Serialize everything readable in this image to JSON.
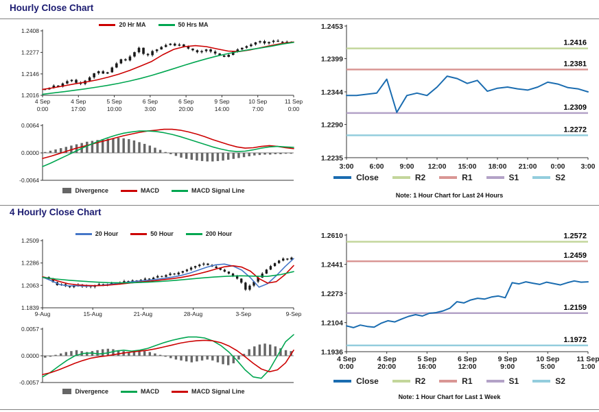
{
  "sections": {
    "hourly": {
      "title": "Hourly Close Chart"
    },
    "four_hourly": {
      "title": "4 Hourly Close Chart"
    }
  },
  "colors": {
    "candle": "#1a1a1a",
    "ma_red": "#cc0000",
    "ma_green": "#00a650",
    "ma_blue": "#4576c8",
    "close_blue": "#1a6cb0",
    "r2": "#c3d69b",
    "r1": "#d99694",
    "s1": "#b3a2c7",
    "s2": "#93cddd",
    "divergence": "#666666",
    "title_navy": "#1a1a70"
  },
  "chart_data": {
    "hourly_price": {
      "type": "candlestick",
      "ylim": [
        1.2016,
        1.2408
      ],
      "yticks": [
        1.2408,
        1.2277,
        1.2146,
        1.2016
      ],
      "xlabels": [
        [
          "4 Sep",
          "0:00"
        ],
        [
          "4 Sep",
          "17:00"
        ],
        [
          "5 Sep",
          "10:00"
        ],
        [
          "6 Sep",
          "3:00"
        ],
        [
          "6 Sep",
          "20:00"
        ],
        [
          "9 Sep",
          "14:00"
        ],
        [
          "10 Sep",
          "7:00"
        ],
        [
          "11 Sep",
          "0:00"
        ]
      ],
      "wick": 0.001,
      "close": [
        1.2052,
        1.206,
        1.2075,
        1.2068,
        1.2088,
        1.2102,
        1.211,
        1.2092,
        1.2085,
        1.2105,
        1.2125,
        1.215,
        1.2162,
        1.2148,
        1.2156,
        1.2185,
        1.221,
        1.2235,
        1.2228,
        1.2252,
        1.2278,
        1.2305,
        1.2268,
        1.226,
        1.2285,
        1.2295,
        1.231,
        1.2322,
        1.233,
        1.2318,
        1.2325,
        1.2312,
        1.23,
        1.229,
        1.2278,
        1.2285,
        1.2295,
        1.2282,
        1.227,
        1.2258,
        1.225,
        1.2262,
        1.228,
        1.2295,
        1.2305,
        1.2315,
        1.2325,
        1.2338,
        1.2345,
        1.2332,
        1.234,
        1.2348,
        1.2342,
        1.2336,
        1.2342,
        1.234
      ],
      "lines": [
        {
          "name": "20 Hr MA",
          "color": "#cc0000",
          "values": [
            1.2052,
            1.2062,
            1.2074,
            1.2086,
            1.2097,
            1.211,
            1.2126,
            1.2145,
            1.2168,
            1.2194,
            1.2222,
            1.2262,
            1.2295,
            1.2312,
            1.2318,
            1.2312,
            1.2298,
            1.2285,
            1.2282,
            1.2292,
            1.2306,
            1.232,
            1.2332,
            1.234
          ]
        },
        {
          "name": "50 Hrs MA",
          "color": "#00a650",
          "values": [
            1.2022,
            1.203,
            1.2038,
            1.2047,
            1.2056,
            1.2066,
            1.2077,
            1.2089,
            1.2103,
            1.2119,
            1.2137,
            1.2157,
            1.2178,
            1.2199,
            1.2219,
            1.2238,
            1.2255,
            1.227,
            1.2283,
            1.2294,
            1.2304,
            1.2315,
            1.2328,
            1.2338
          ]
        }
      ],
      "legend": [
        {
          "label": "20 Hr MA",
          "color": "#cc0000",
          "swatch": "line"
        },
        {
          "label": "50 Hrs MA",
          "color": "#00a650",
          "swatch": "line"
        }
      ]
    },
    "hourly_macd": {
      "type": "macd",
      "ylim": [
        -0.0064,
        0.0064
      ],
      "yticks": [
        0.0064,
        0.0,
        -0.0064
      ],
      "bars": {
        "name": "Divergence",
        "color": "#666666",
        "values": [
          0.0002,
          0.0005,
          0.0008,
          0.0011,
          0.0014,
          0.0017,
          0.002,
          0.0023,
          0.0026,
          0.0028,
          0.003,
          0.0032,
          0.0033,
          0.0034,
          0.0035,
          0.0034,
          0.0032,
          0.0029,
          0.0025,
          0.0021,
          0.0017,
          0.0012,
          0.0007,
          0.0002,
          -0.0003,
          -0.0007,
          -0.0011,
          -0.0014,
          -0.0016,
          -0.0018,
          -0.0019,
          -0.002,
          -0.002,
          -0.0019,
          -0.0018,
          -0.0016,
          -0.0014,
          -0.0012,
          -0.001,
          -0.0008,
          -0.0006,
          -0.0005,
          -0.0004,
          -0.0004,
          -0.0003,
          -0.0003,
          -0.0002,
          -0.0002
        ]
      },
      "lines": [
        {
          "name": "MACD",
          "color": "#cc0000",
          "values": [
            -0.0013,
            -0.0008,
            -0.0002,
            0.0004,
            0.001,
            0.0015,
            0.002,
            0.0025,
            0.003,
            0.0035,
            0.004,
            0.0044,
            0.0048,
            0.0051,
            0.0053,
            0.0055,
            0.0055,
            0.0053,
            0.0049,
            0.0044,
            0.0038,
            0.0031,
            0.0025,
            0.0019,
            0.0014,
            0.0011,
            0.0012,
            0.0015,
            0.0017,
            0.0015,
            0.0012,
            0.001
          ]
        },
        {
          "name": "MACD Signal Line",
          "color": "#00a650",
          "values": [
            -0.0032,
            -0.0024,
            -0.0015,
            -0.0006,
            0.0003,
            0.0012,
            0.002,
            0.0028,
            0.0035,
            0.0041,
            0.0046,
            0.0049,
            0.0051,
            0.0051,
            0.005,
            0.0047,
            0.0043,
            0.0038,
            0.0032,
            0.0026,
            0.002,
            0.0014,
            0.0009,
            0.0005,
            0.0003,
            0.0004,
            0.0007,
            0.0011,
            0.0014,
            0.0015,
            0.0014,
            0.0013
          ]
        }
      ],
      "legend": [
        {
          "label": "Divergence",
          "color": "#666666",
          "swatch": "bar"
        },
        {
          "label": "MACD",
          "color": "#cc0000",
          "swatch": "line"
        },
        {
          "label": "MACD Signal Line",
          "color": "#00a650",
          "swatch": "line"
        }
      ]
    },
    "hourly_pivot": {
      "type": "line",
      "ylim": [
        1.2235,
        1.2453
      ],
      "yticks": [
        1.2453,
        1.2399,
        1.2344,
        1.229,
        1.2235
      ],
      "xlabels": [
        "3:00",
        "6:00",
        "9:00",
        "12:00",
        "15:00",
        "18:00",
        "21:00",
        "0:00",
        "3:00"
      ],
      "close": {
        "name": "Close",
        "color": "#1a6cb0",
        "values": [
          1.2338,
          1.2338,
          1.234,
          1.2342,
          1.2365,
          1.231,
          1.2338,
          1.2342,
          1.2338,
          1.2352,
          1.237,
          1.2366,
          1.2358,
          1.2363,
          1.2345,
          1.235,
          1.2352,
          1.2349,
          1.2347,
          1.2352,
          1.236,
          1.2357,
          1.2351,
          1.2349,
          1.2344
        ]
      },
      "pivots": [
        {
          "name": "R2",
          "value": 1.2416,
          "color": "#c3d69b"
        },
        {
          "name": "R1",
          "value": 1.2381,
          "color": "#d99694"
        },
        {
          "name": "S1",
          "value": 1.2309,
          "color": "#b3a2c7"
        },
        {
          "name": "S2",
          "value": 1.2272,
          "color": "#93cddd"
        }
      ],
      "legend": [
        {
          "label": "Close",
          "color": "#1a6cb0",
          "swatch": "line"
        },
        {
          "label": "R2",
          "color": "#c3d69b",
          "swatch": "line"
        },
        {
          "label": "R1",
          "color": "#d99694",
          "swatch": "line"
        },
        {
          "label": "S1",
          "color": "#b3a2c7",
          "swatch": "line"
        },
        {
          "label": "S2",
          "color": "#93cddd",
          "swatch": "line"
        }
      ],
      "note": "Note: 1 Hour Chart for Last 24 Hours"
    },
    "four_hourly_price": {
      "type": "candlestick",
      "ylim": [
        1.1839,
        1.2509
      ],
      "yticks": [
        1.2509,
        1.2286,
        1.2063,
        1.1839
      ],
      "xlabels": [
        "9-Aug",
        "15-Aug",
        "21-Aug",
        "28-Aug",
        "3-Sep",
        "9-Sep"
      ],
      "wick": 0.0016,
      "close": [
        1.2145,
        1.2125,
        1.2095,
        1.2065,
        1.2075,
        1.2055,
        1.2045,
        1.206,
        1.207,
        1.205,
        1.206,
        1.2048,
        1.2062,
        1.2075,
        1.206,
        1.2072,
        1.2085,
        1.2078,
        1.2092,
        1.2105,
        1.2095,
        1.2112,
        1.21,
        1.2118,
        1.213,
        1.2122,
        1.214,
        1.2155,
        1.2148,
        1.2165,
        1.218,
        1.2172,
        1.219,
        1.2205,
        1.222,
        1.224,
        1.2255,
        1.227,
        1.228,
        1.2265,
        1.225,
        1.2235,
        1.2218,
        1.22,
        1.218,
        1.2155,
        1.213,
        1.209,
        1.202,
        1.206,
        1.21,
        1.214,
        1.218,
        1.222,
        1.2255,
        1.2285,
        1.231,
        1.233,
        1.232,
        1.234
      ],
      "lines": [
        {
          "name": "20 Hour",
          "color": "#4576c8",
          "values": [
            1.2145,
            1.211,
            1.207,
            1.2058,
            1.206,
            1.2055,
            1.2058,
            1.2065,
            1.2075,
            1.2085,
            1.2095,
            1.2105,
            1.2112,
            1.2122,
            1.2132,
            1.2145,
            1.2162,
            1.2185,
            1.2215,
            1.2245,
            1.2268,
            1.2275,
            1.2255,
            1.2215,
            1.214,
            1.2045,
            1.208,
            1.216,
            1.225,
            1.233
          ]
        },
        {
          "name": "50 Hour",
          "color": "#cc0000",
          "values": [
            1.2148,
            1.2128,
            1.21,
            1.2078,
            1.2068,
            1.2062,
            1.206,
            1.2062,
            1.2068,
            1.2076,
            1.2085,
            1.2094,
            1.2102,
            1.211,
            1.212,
            1.213,
            1.2142,
            1.2158,
            1.2178,
            1.22,
            1.2225,
            1.2248,
            1.2258,
            1.2245,
            1.2205,
            1.213,
            1.2085,
            1.21,
            1.217,
            1.226
          ]
        },
        {
          "name": "200 Hour",
          "color": "#00a650",
          "values": [
            1.2142,
            1.2126,
            1.2114,
            1.2104,
            1.2096,
            1.209,
            1.2088,
            1.209,
            1.2095,
            1.2102,
            1.2112,
            1.2124,
            1.2136,
            1.2146,
            1.2154,
            1.2158,
            1.2155,
            1.2152,
            1.217,
            1.22
          ]
        }
      ],
      "legend": [
        {
          "label": "20 Hour",
          "color": "#4576c8",
          "swatch": "line"
        },
        {
          "label": "50 Hour",
          "color": "#cc0000",
          "swatch": "line"
        },
        {
          "label": "200 Hour",
          "color": "#00a650",
          "swatch": "line"
        }
      ]
    },
    "four_hourly_macd": {
      "type": "macd",
      "ylim": [
        -0.0057,
        0.0057
      ],
      "yticks": [
        0.0057,
        0.0,
        -0.0057
      ],
      "bars": {
        "name": "Divergence",
        "color": "#666666",
        "values": [
          -0.0004,
          -0.0002,
          0.0002,
          0.0005,
          0.0008,
          0.001,
          0.0012,
          0.001,
          0.0008,
          0.001,
          0.0012,
          0.0014,
          0.0015,
          0.0014,
          0.0012,
          0.001,
          0.0008,
          0.001,
          0.0012,
          0.001,
          0.0008,
          0.0005,
          0.0002,
          -0.0002,
          -0.0005,
          -0.0008,
          -0.001,
          -0.0012,
          -0.0014,
          -0.0012,
          -0.001,
          -0.0008,
          -0.001,
          -0.0014,
          -0.0018,
          -0.002,
          -0.0016,
          -0.0008,
          0.0004,
          0.0014,
          0.002,
          0.0024,
          0.0026,
          0.0024,
          0.002,
          0.0016,
          0.0012,
          0.001
        ]
      },
      "lines": [
        {
          "name": "MACD",
          "color": "#00a650",
          "values": [
            -0.0045,
            -0.0035,
            -0.0022,
            -0.001,
            0.0,
            0.0005,
            0.0006,
            0.0004,
            0.0006,
            0.001,
            0.0012,
            0.001,
            0.0012,
            0.0016,
            0.0022,
            0.0028,
            0.0033,
            0.0037,
            0.004,
            0.004,
            0.0038,
            0.0032,
            0.0022,
            0.0008,
            -0.001,
            -0.003,
            -0.0045,
            -0.0048,
            -0.003,
            0.0,
            0.003,
            0.0045
          ]
        },
        {
          "name": "MACD Signal Line",
          "color": "#cc0000",
          "values": [
            -0.004,
            -0.0036,
            -0.003,
            -0.0023,
            -0.0016,
            -0.001,
            -0.0005,
            -0.0002,
            0.0,
            0.0003,
            0.0006,
            0.0008,
            0.001,
            0.0012,
            0.0015,
            0.0019,
            0.0023,
            0.0027,
            0.003,
            0.0032,
            0.0033,
            0.0032,
            0.0028,
            0.0021,
            0.0011,
            -0.0002,
            -0.0016,
            -0.0028,
            -0.0034,
            -0.003,
            -0.0015,
            0.0012
          ]
        }
      ],
      "legend": [
        {
          "label": "Divergence",
          "color": "#666666",
          "swatch": "bar"
        },
        {
          "label": "MACD",
          "color": "#00a650",
          "swatch": "line"
        },
        {
          "label": "MACD Signal Line",
          "color": "#cc0000",
          "swatch": "line"
        }
      ]
    },
    "four_hourly_pivot": {
      "type": "line",
      "ylim": [
        1.1936,
        1.261
      ],
      "yticks": [
        1.261,
        1.2441,
        1.2273,
        1.2104,
        1.1936
      ],
      "xlabels": [
        [
          "4 Sep",
          "0:00"
        ],
        [
          "4 Sep",
          "20:00"
        ],
        [
          "5 Sep",
          "16:00"
        ],
        [
          "6 Sep",
          "12:00"
        ],
        [
          "9 Sep",
          "9:00"
        ],
        [
          "10 Sep",
          "5:00"
        ],
        [
          "11 Sep",
          "1:00"
        ]
      ],
      "close": {
        "name": "Close",
        "color": "#1a6cb0",
        "values": [
          1.2085,
          1.2075,
          1.209,
          1.2082,
          1.2078,
          1.21,
          1.2115,
          1.2108,
          1.2125,
          1.214,
          1.215,
          1.2142,
          1.2158,
          1.2162,
          1.2172,
          1.2188,
          1.2225,
          1.2218,
          1.2235,
          1.2245,
          1.224,
          1.2252,
          1.2258,
          1.2248,
          1.2335,
          1.2328,
          1.234,
          1.2332,
          1.2325,
          1.2338,
          1.233,
          1.2322,
          1.2335,
          1.2345,
          1.2338,
          1.234
        ]
      },
      "pivots": [
        {
          "name": "R2",
          "value": 1.2572,
          "color": "#c3d69b"
        },
        {
          "name": "R1",
          "value": 1.2459,
          "color": "#d99694"
        },
        {
          "name": "S1",
          "value": 1.2159,
          "color": "#b3a2c7"
        },
        {
          "name": "S2",
          "value": 1.1972,
          "color": "#93cddd"
        }
      ],
      "legend": [
        {
          "label": "Close",
          "color": "#1a6cb0",
          "swatch": "line"
        },
        {
          "label": "R2",
          "color": "#c3d69b",
          "swatch": "line"
        },
        {
          "label": "R1",
          "color": "#d99694",
          "swatch": "line"
        },
        {
          "label": "S1",
          "color": "#b3a2c7",
          "swatch": "line"
        },
        {
          "label": "S2",
          "color": "#93cddd",
          "swatch": "line"
        }
      ],
      "note": "Note: 1 Hour Chart for Last 1 Week"
    }
  }
}
